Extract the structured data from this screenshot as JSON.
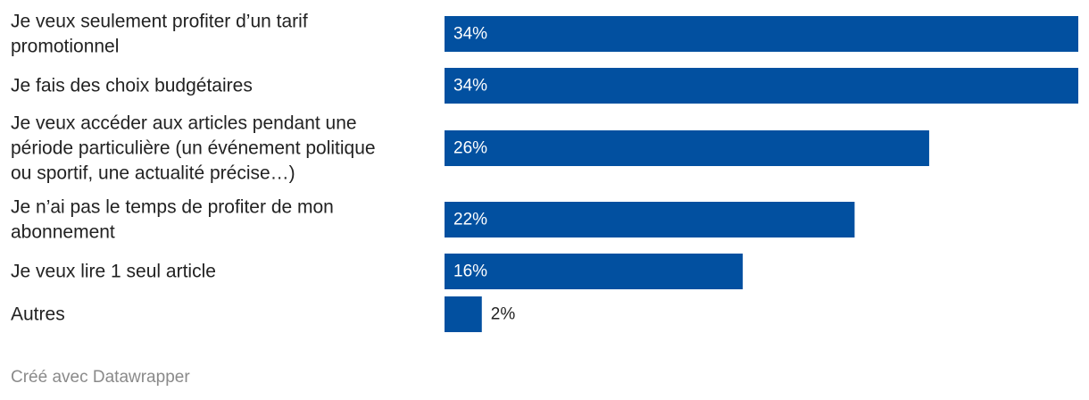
{
  "chart_data": {
    "type": "bar",
    "orientation": "horizontal",
    "categories": [
      "Je veux seulement profiter d’un tarif promotionnel",
      "Je fais des choix budgétaires",
      "Je veux accéder aux articles pendant une période particulière (un événement politique ou sportif, une actualité précise…)",
      "Je n’ai pas le temps de profiter de mon abonnement",
      "Je veux lire 1 seul article",
      "Autres"
    ],
    "category_lines": [
      [
        "Je veux seulement profiter d’un tarif",
        "promotionnel"
      ],
      [
        "Je fais des choix budgétaires"
      ],
      [
        "Je veux accéder aux articles pendant une",
        "période particulière (un événement politique",
        "ou sportif, une actualité précise…)"
      ],
      [
        "Je n’ai pas le temps de profiter de mon",
        "abonnement"
      ],
      [
        "Je veux lire 1 seul article"
      ],
      [
        "Autres"
      ]
    ],
    "values": [
      34,
      34,
      26,
      22,
      16,
      2
    ],
    "value_labels": [
      "34%",
      "34%",
      "26%",
      "22%",
      "16%",
      "2%"
    ],
    "xlim": [
      0,
      34
    ],
    "bar_color": "#0250a0",
    "grid": false,
    "legend": "none"
  },
  "footer": {
    "credit": "Créé avec Datawrapper"
  }
}
